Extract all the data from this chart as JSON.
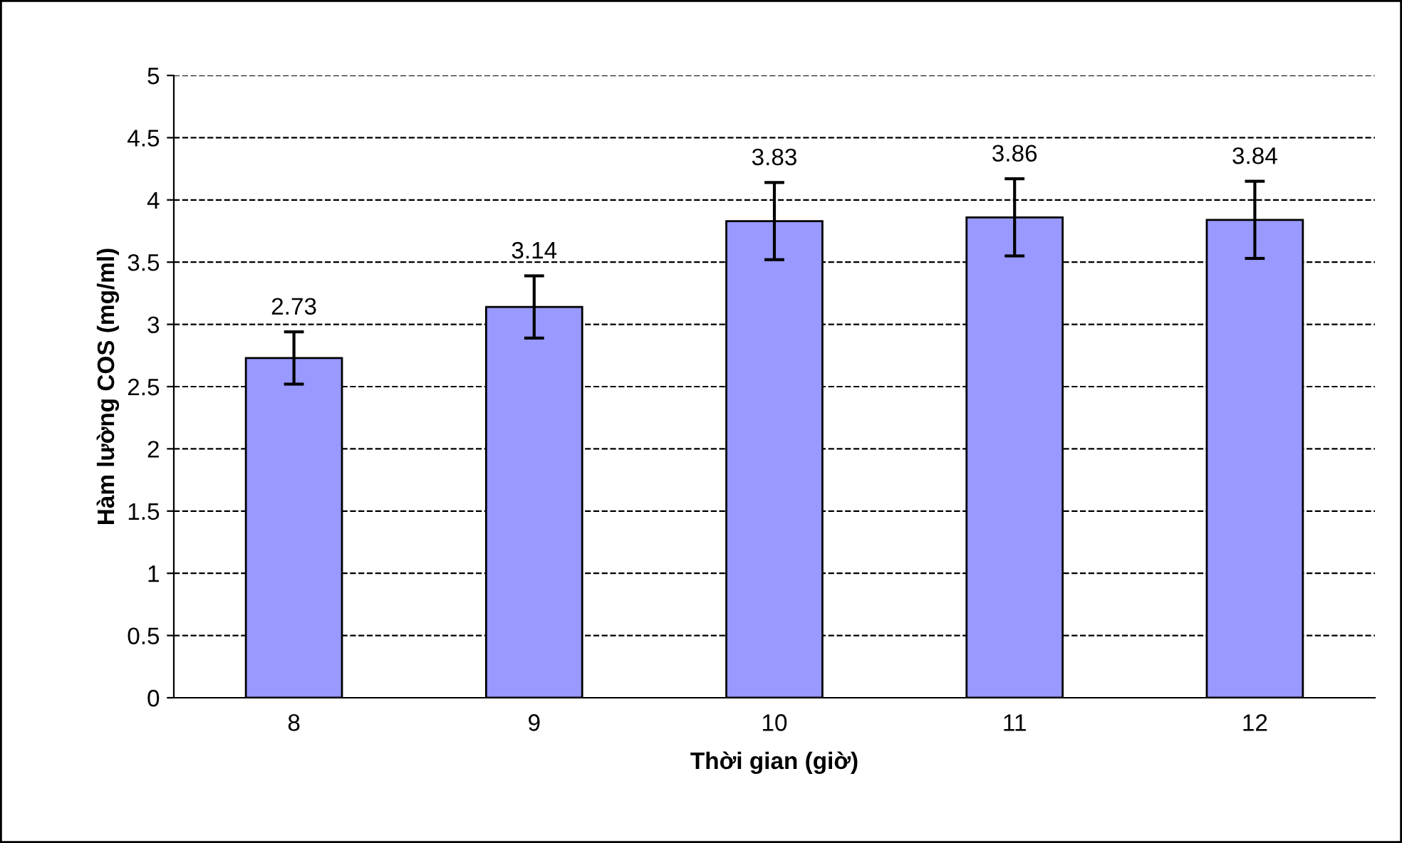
{
  "chart_data": {
    "type": "bar",
    "xlabel": "Thời gian (giờ)",
    "ylabel": "Hàm lường COS (mg/ml)",
    "categories": [
      "8",
      "9",
      "10",
      "11",
      "12"
    ],
    "values": [
      2.73,
      3.14,
      3.83,
      3.86,
      3.84
    ],
    "errors": [
      0.21,
      0.25,
      0.31,
      0.31,
      0.31
    ],
    "color": "#9999ff",
    "ylim": [
      0,
      5
    ],
    "yticks": [
      0,
      0.5,
      1,
      1.5,
      2,
      2.5,
      3,
      3.5,
      4,
      4.5,
      5
    ],
    "grid": "y",
    "data_labels": true
  }
}
